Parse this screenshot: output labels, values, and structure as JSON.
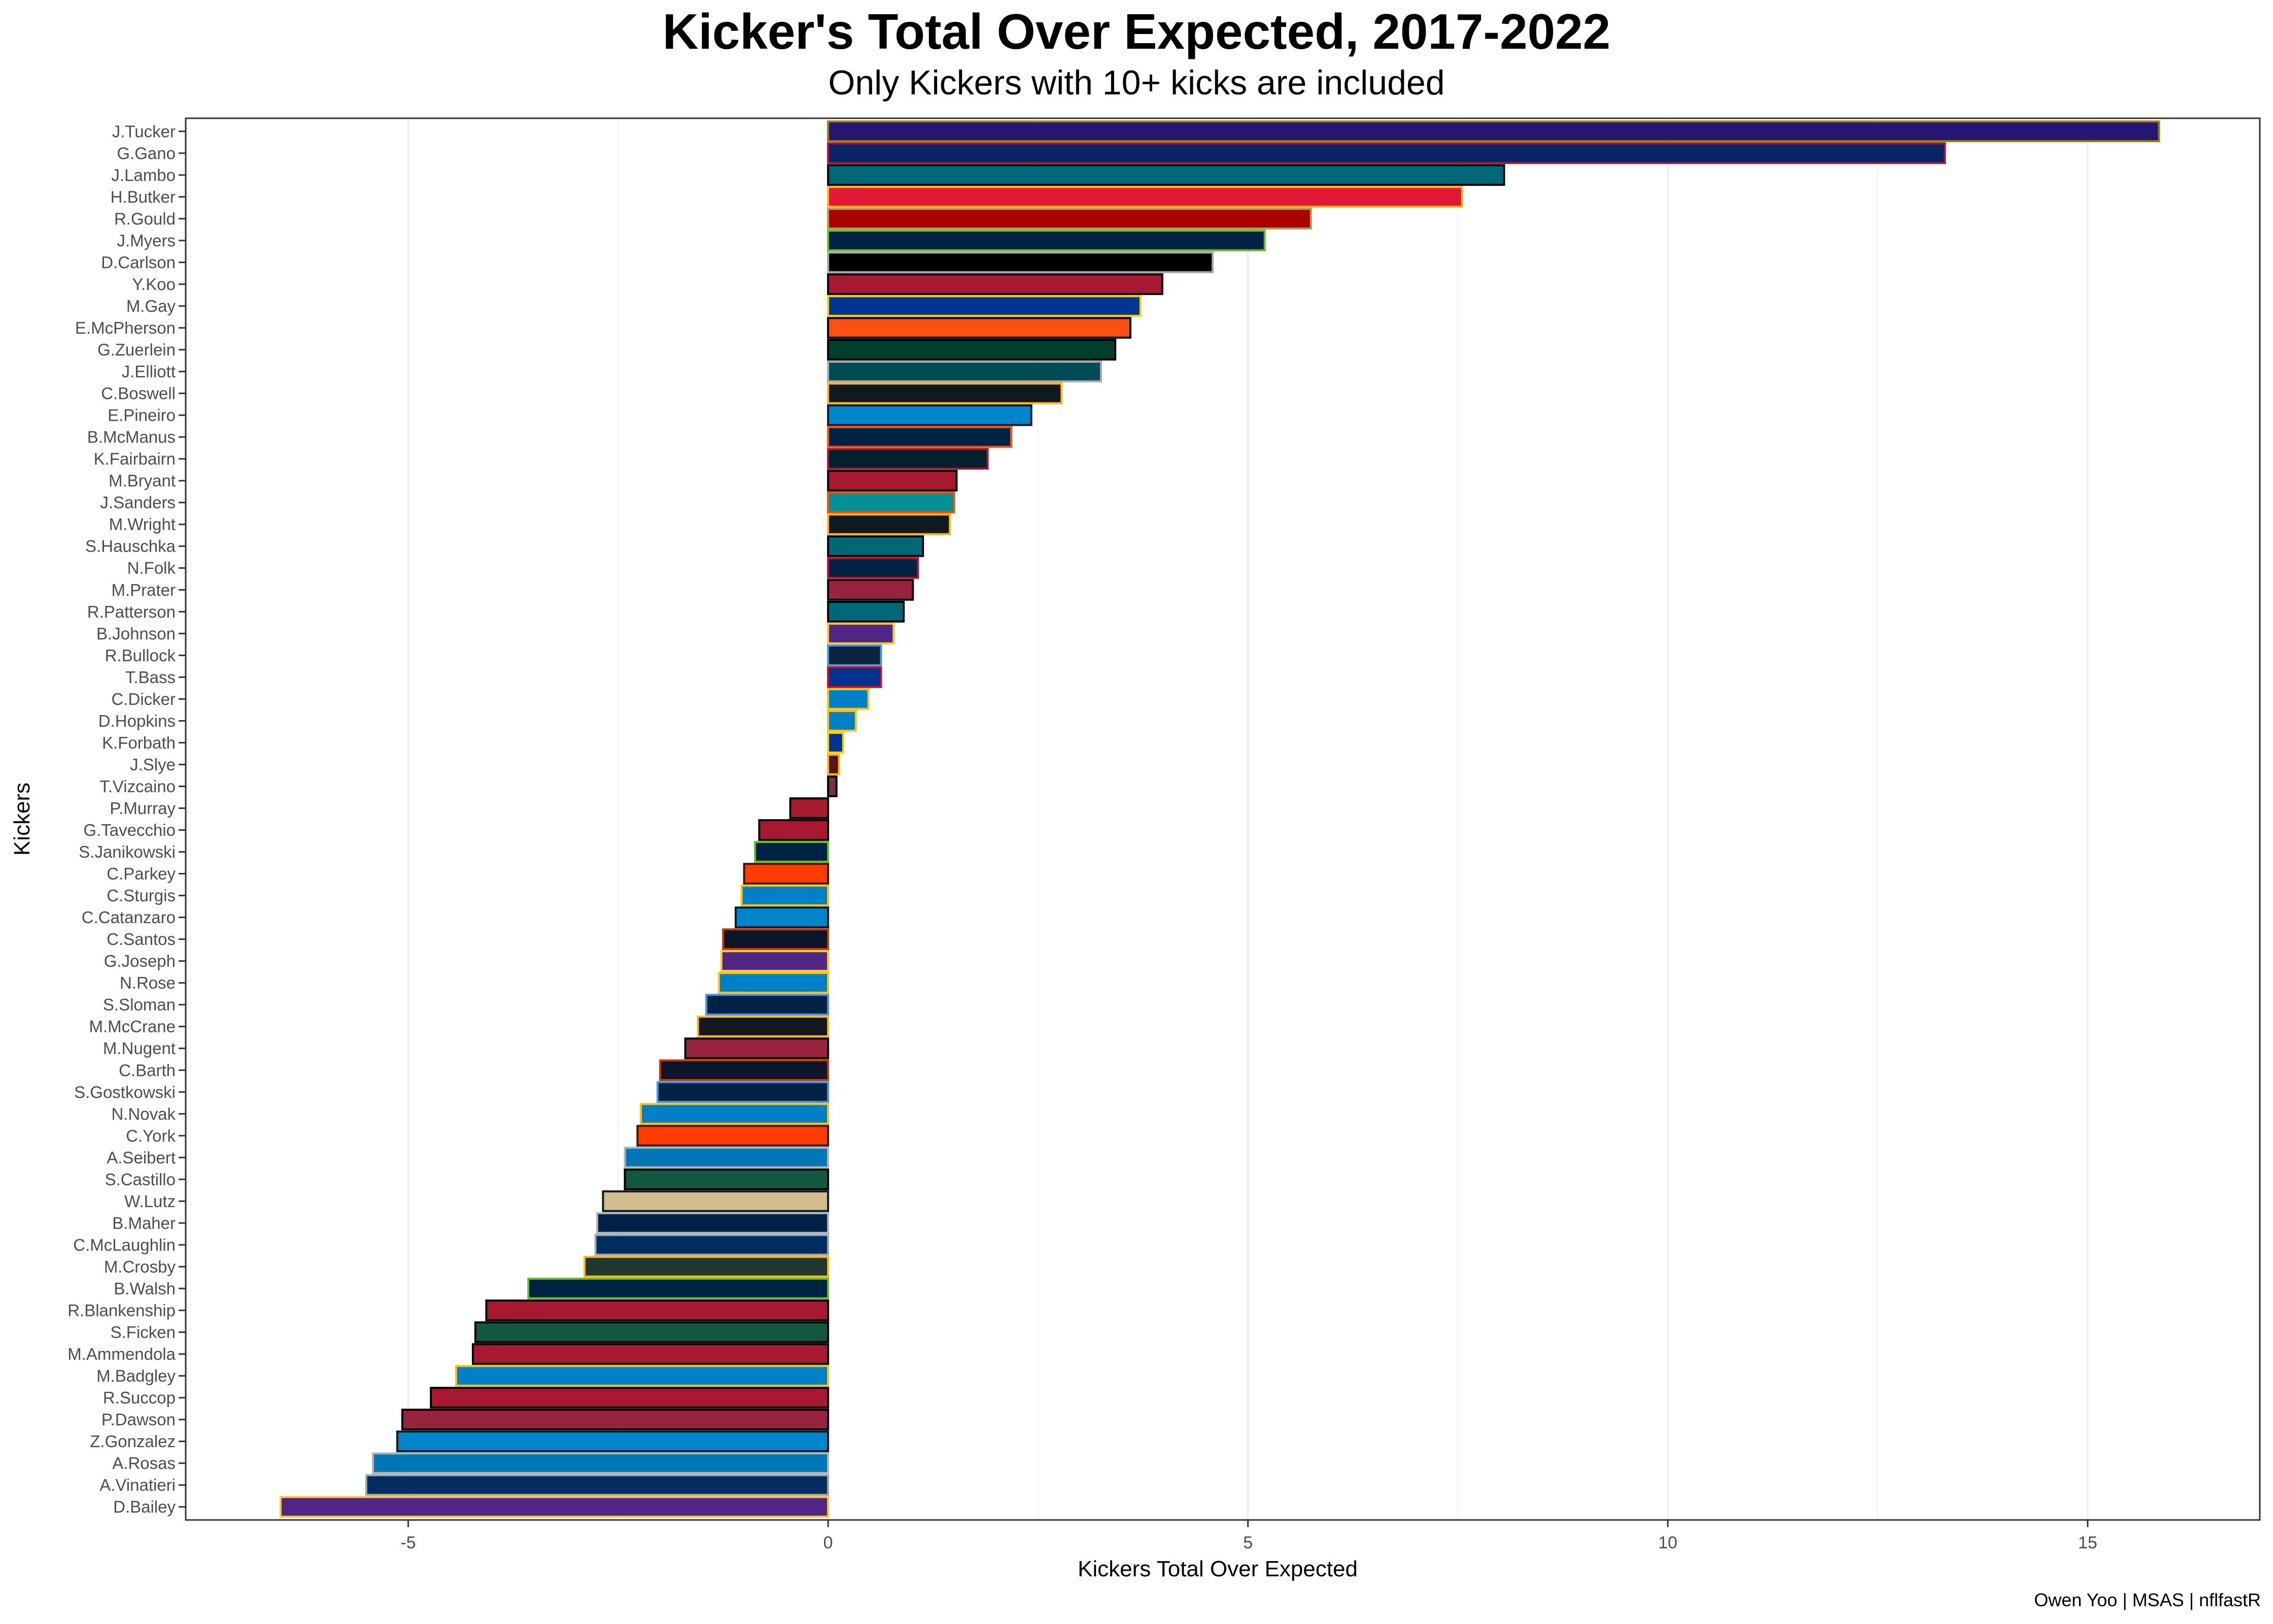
{
  "title": "Kicker's Total Over Expected, 2017-2022",
  "subtitle": "Only Kickers with 10+ kicks are included",
  "caption": "Owen Yoo | MSAS | nflfastR",
  "chart_data": {
    "type": "bar",
    "orientation": "horizontal",
    "title": "Kicker's Total Over Expected, 2017-2022",
    "subtitle": "Only Kickers with 10+ kicks are included",
    "xlabel": "Kickers Total Over Expected",
    "ylabel": "Kickers",
    "xlim": [
      -7.65,
      17.05
    ],
    "x_ticks": [
      -5,
      0,
      5,
      10,
      15
    ],
    "x_tick_labels": [
      "-5",
      "0",
      "5",
      "10",
      "15"
    ],
    "grid": "vertical major and minor",
    "legend": "none",
    "bars": [
      {
        "kicker": "J.Tucker",
        "value": 15.85,
        "fill": "#241773",
        "outline": "#9E7C0C"
      },
      {
        "kicker": "G.Gano",
        "value": 13.3,
        "fill": "#0B2265",
        "outline": "#A71930"
      },
      {
        "kicker": "J.Lambo",
        "value": 8.05,
        "fill": "#006778",
        "outline": "#000000"
      },
      {
        "kicker": "H.Butker",
        "value": 7.55,
        "fill": "#E31837",
        "outline": "#FFB81C"
      },
      {
        "kicker": "R.Gould",
        "value": 5.75,
        "fill": "#AA0000",
        "outline": "#B3995D"
      },
      {
        "kicker": "J.Myers",
        "value": 5.2,
        "fill": "#002244",
        "outline": "#69BE28"
      },
      {
        "kicker": "D.Carlson",
        "value": 4.58,
        "fill": "#000000",
        "outline": "#A5ACAF"
      },
      {
        "kicker": "Y.Koo",
        "value": 3.98,
        "fill": "#A71930",
        "outline": "#000000"
      },
      {
        "kicker": "M.Gay",
        "value": 3.72,
        "fill": "#003594",
        "outline": "#FFD100"
      },
      {
        "kicker": "E.McPherson",
        "value": 3.6,
        "fill": "#FB4F14",
        "outline": "#000000"
      },
      {
        "kicker": "G.Zuerlein",
        "value": 3.42,
        "fill": "#003F2D",
        "outline": "#000000"
      },
      {
        "kicker": "J.Elliott",
        "value": 3.25,
        "fill": "#004C54",
        "outline": "#A5ACAF"
      },
      {
        "kicker": "C.Boswell",
        "value": 2.78,
        "fill": "#101820",
        "outline": "#FFB612"
      },
      {
        "kicker": "E.Pineiro",
        "value": 2.42,
        "fill": "#0085CA",
        "outline": "#101820"
      },
      {
        "kicker": "B.McManus",
        "value": 2.18,
        "fill": "#002244",
        "outline": "#FB4F14"
      },
      {
        "kicker": "K.Fairbairn",
        "value": 1.9,
        "fill": "#03202F",
        "outline": "#A71930"
      },
      {
        "kicker": "M.Bryant",
        "value": 1.53,
        "fill": "#A71930",
        "outline": "#000000"
      },
      {
        "kicker": "J.Sanders",
        "value": 1.5,
        "fill": "#008E97",
        "outline": "#FC4C02"
      },
      {
        "kicker": "M.Wright",
        "value": 1.45,
        "fill": "#101820",
        "outline": "#FFB612"
      },
      {
        "kicker": "S.Hauschka",
        "value": 1.13,
        "fill": "#006778",
        "outline": "#000000"
      },
      {
        "kicker": "N.Folk",
        "value": 1.07,
        "fill": "#002244",
        "outline": "#C60C30"
      },
      {
        "kicker": "M.Prater",
        "value": 1.01,
        "fill": "#97233F",
        "outline": "#000000"
      },
      {
        "kicker": "R.Patterson",
        "value": 0.9,
        "fill": "#006778",
        "outline": "#000000"
      },
      {
        "kicker": "B.Johnson",
        "value": 0.78,
        "fill": "#4F2683",
        "outline": "#FFC62F"
      },
      {
        "kicker": "R.Bullock",
        "value": 0.63,
        "fill": "#0C2340",
        "outline": "#4B92DB"
      },
      {
        "kicker": "T.Bass",
        "value": 0.63,
        "fill": "#00338D",
        "outline": "#C60C30"
      },
      {
        "kicker": "C.Dicker",
        "value": 0.48,
        "fill": "#0080C6",
        "outline": "#FFC20E"
      },
      {
        "kicker": "D.Hopkins",
        "value": 0.33,
        "fill": "#0080C6",
        "outline": "#FFC20E"
      },
      {
        "kicker": "K.Forbath",
        "value": 0.18,
        "fill": "#003594",
        "outline": "#FFD100"
      },
      {
        "kicker": "J.Slye",
        "value": 0.13,
        "fill": "#5A1414",
        "outline": "#FFB612"
      },
      {
        "kicker": "T.Vizcaino",
        "value": 0.1,
        "fill": "#773141",
        "outline": "#000000"
      },
      {
        "kicker": "P.Murray",
        "value": -0.45,
        "fill": "#A71930",
        "outline": "#000000"
      },
      {
        "kicker": "G.Tavecchio",
        "value": -0.82,
        "fill": "#A71930",
        "outline": "#000000"
      },
      {
        "kicker": "S.Janikowski",
        "value": -0.87,
        "fill": "#002244",
        "outline": "#69BE28"
      },
      {
        "kicker": "C.Parkey",
        "value": -1.0,
        "fill": "#FF3C00",
        "outline": "#311D00"
      },
      {
        "kicker": "C.Sturgis",
        "value": -1.03,
        "fill": "#0080C6",
        "outline": "#FFC20E"
      },
      {
        "kicker": "C.Catanzaro",
        "value": -1.1,
        "fill": "#0085CA",
        "outline": "#101820"
      },
      {
        "kicker": "C.Santos",
        "value": -1.25,
        "fill": "#0B162A",
        "outline": "#C83803"
      },
      {
        "kicker": "G.Joseph",
        "value": -1.27,
        "fill": "#4F2683",
        "outline": "#FFC62F"
      },
      {
        "kicker": "N.Rose",
        "value": -1.3,
        "fill": "#0080C6",
        "outline": "#FFC20E"
      },
      {
        "kicker": "S.Sloman",
        "value": -1.45,
        "fill": "#002244",
        "outline": "#4B92DB"
      },
      {
        "kicker": "M.McCrane",
        "value": -1.55,
        "fill": "#101820",
        "outline": "#FFB612"
      },
      {
        "kicker": "M.Nugent",
        "value": -1.7,
        "fill": "#97233F",
        "outline": "#000000"
      },
      {
        "kicker": "C.Barth",
        "value": -2.0,
        "fill": "#0B162A",
        "outline": "#C83803"
      },
      {
        "kicker": "S.Gostkowski",
        "value": -2.03,
        "fill": "#002244",
        "outline": "#4B92DB"
      },
      {
        "kicker": "N.Novak",
        "value": -2.23,
        "fill": "#0080C6",
        "outline": "#FFC20E"
      },
      {
        "kicker": "C.York",
        "value": -2.27,
        "fill": "#FF3C00",
        "outline": "#311D00"
      },
      {
        "kicker": "A.Seibert",
        "value": -2.42,
        "fill": "#0076B6",
        "outline": "#B0B7BC"
      },
      {
        "kicker": "S.Castillo",
        "value": -2.42,
        "fill": "#125740",
        "outline": "#000000"
      },
      {
        "kicker": "W.Lutz",
        "value": -2.68,
        "fill": "#D3BC8D",
        "outline": "#101820"
      },
      {
        "kicker": "B.Maher",
        "value": -2.75,
        "fill": "#002244",
        "outline": "#B0B7BC"
      },
      {
        "kicker": "C.McLaughlin",
        "value": -2.77,
        "fill": "#002C5F",
        "outline": "#A2AAAD"
      },
      {
        "kicker": "M.Crosby",
        "value": -2.9,
        "fill": "#203731",
        "outline": "#FFB612"
      },
      {
        "kicker": "B.Walsh",
        "value": -3.57,
        "fill": "#002244",
        "outline": "#69BE28"
      },
      {
        "kicker": "R.Blankenship",
        "value": -4.07,
        "fill": "#A71930",
        "outline": "#000000"
      },
      {
        "kicker": "S.Ficken",
        "value": -4.2,
        "fill": "#125740",
        "outline": "#000000"
      },
      {
        "kicker": "M.Ammendola",
        "value": -4.23,
        "fill": "#A71930",
        "outline": "#000000"
      },
      {
        "kicker": "M.Badgley",
        "value": -4.43,
        "fill": "#0080C6",
        "outline": "#FFC20E"
      },
      {
        "kicker": "R.Succop",
        "value": -4.73,
        "fill": "#A71930",
        "outline": "#000000"
      },
      {
        "kicker": "P.Dawson",
        "value": -5.07,
        "fill": "#97233F",
        "outline": "#000000"
      },
      {
        "kicker": "Z.Gonzalez",
        "value": -5.13,
        "fill": "#0085CA",
        "outline": "#101820"
      },
      {
        "kicker": "A.Rosas",
        "value": -5.42,
        "fill": "#0076B6",
        "outline": "#B0B7BC"
      },
      {
        "kicker": "A.Vinatieri",
        "value": -5.5,
        "fill": "#002C5F",
        "outline": "#A2AAAD"
      },
      {
        "kicker": "D.Bailey",
        "value": -6.52,
        "fill": "#4F2683",
        "outline": "#FFC62F"
      }
    ]
  }
}
